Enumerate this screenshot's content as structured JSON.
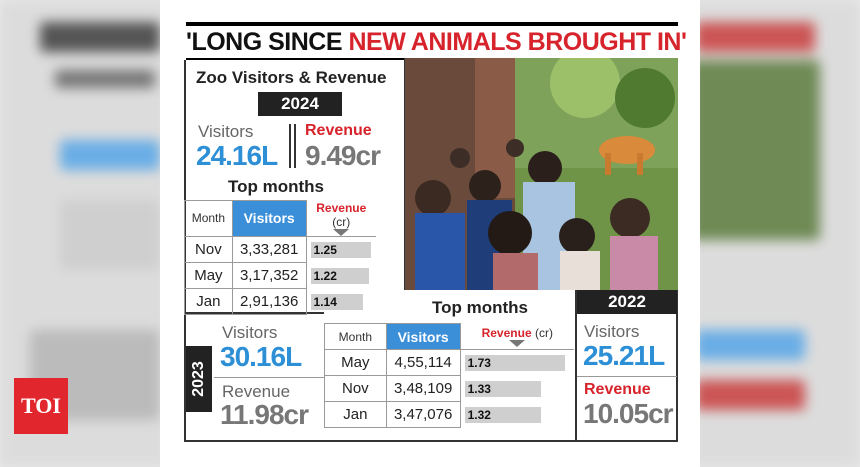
{
  "headline": {
    "part1": "'LONG SINCE ",
    "part2": "NEW ANIMALS BROUGHT IN'"
  },
  "box_2024": {
    "title": "Zoo Visitors & Revenue",
    "year": "2024",
    "visitors_label": "Visitors",
    "visitors_value": "24.16L",
    "revenue_label": "Revenue",
    "revenue_value": "9.49cr",
    "top_months_title": "Top months",
    "table": {
      "headers": {
        "month": "Month",
        "visitors": "Visitors",
        "revenue": "Revenue",
        "revenue_unit": "(cr)"
      },
      "rows": [
        {
          "month": "Nov",
          "visitors": "3,33,281",
          "revenue": "1.25"
        },
        {
          "month": "May",
          "visitors": "3,17,352",
          "revenue": "1.22"
        },
        {
          "month": "Jan",
          "visitors": "2,91,136",
          "revenue": "1.14"
        }
      ]
    }
  },
  "box_2023": {
    "year": "2023",
    "visitors_label": "Visitors",
    "visitors_value": "30.16L",
    "revenue_label": "Revenue",
    "revenue_value": "11.98cr",
    "top_months_title": "Top months",
    "table": {
      "headers": {
        "month": "Month",
        "visitors": "Visitors",
        "revenue": "Revenue",
        "revenue_unit": "(cr)"
      },
      "rows": [
        {
          "month": "May",
          "visitors": "4,55,114",
          "revenue": "1.73"
        },
        {
          "month": "Nov",
          "visitors": "3,48,109",
          "revenue": "1.33"
        },
        {
          "month": "Jan",
          "visitors": "3,47,076",
          "revenue": "1.32"
        }
      ]
    }
  },
  "box_2022": {
    "year": "2022",
    "visitors_label": "Visitors",
    "visitors_value": "25.21L",
    "revenue_label": "Revenue",
    "revenue_value": "10.05cr"
  },
  "logo": {
    "text": "TOI"
  },
  "colors": {
    "red": "#d7232b",
    "blue": "#2d8fd6",
    "toi_red": "#e1262e"
  }
}
